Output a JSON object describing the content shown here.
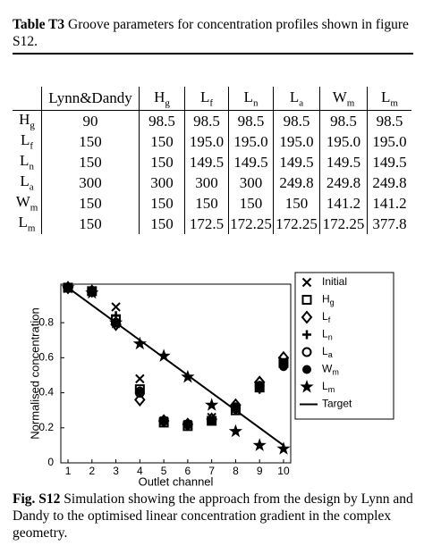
{
  "table_caption": {
    "label": "Table T3",
    "text": " Groove parameters for concentration profiles shown in figure S12."
  },
  "table": {
    "header": [
      {
        "base": "Lynn&Dandy"
      },
      {
        "base": "H",
        "sub": "g"
      },
      {
        "base": "L",
        "sub": "f"
      },
      {
        "base": "L",
        "sub": "n"
      },
      {
        "base": "L",
        "sub": "a"
      },
      {
        "base": "W",
        "sub": "m"
      },
      {
        "base": "L",
        "sub": "m"
      }
    ],
    "rows": [
      {
        "label": {
          "base": "H",
          "sub": "g"
        },
        "cells": [
          "90",
          "98.5",
          "98.5",
          "98.5",
          "98.5",
          "98.5",
          "98.5"
        ]
      },
      {
        "label": {
          "base": "L",
          "sub": "f"
        },
        "cells": [
          "150",
          "150",
          "195.0",
          "195.0",
          "195.0",
          "195.0",
          "195.0"
        ]
      },
      {
        "label": {
          "base": "L",
          "sub": "n"
        },
        "cells": [
          "150",
          "150",
          "149.5",
          "149.5",
          "149.5",
          "149.5",
          "149.5"
        ]
      },
      {
        "label": {
          "base": "L",
          "sub": "a"
        },
        "cells": [
          "300",
          "300",
          "300",
          "300",
          "249.8",
          "249.8",
          "249.8"
        ]
      },
      {
        "label": {
          "base": "W",
          "sub": "m"
        },
        "cells": [
          "150",
          "150",
          "150",
          "150",
          "150",
          "141.2",
          "141.2"
        ]
      },
      {
        "label": {
          "base": "L",
          "sub": "m"
        },
        "cells": [
          "150",
          "150",
          "172.5",
          "172.25",
          "172.25",
          "172.25",
          "377.8"
        ]
      }
    ]
  },
  "chart_data": {
    "type": "scatter",
    "x_label": "Outlet channel",
    "y_label": "Normalised concentration",
    "x": [
      1,
      2,
      3,
      4,
      5,
      6,
      7,
      8,
      9,
      10
    ],
    "xlim": [
      0.7,
      10.3
    ],
    "ylim": [
      0,
      1.02
    ],
    "xticks": [
      1,
      2,
      3,
      4,
      5,
      6,
      7,
      8,
      9,
      10
    ],
    "yticks": [
      0,
      0.2,
      0.4,
      0.6,
      0.8
    ],
    "series": [
      {
        "name": "Initial",
        "marker": "x",
        "color": "#000000",
        "values": [
          1.0,
          0.98,
          0.89,
          0.48,
          0.24,
          0.22,
          0.26,
          0.31,
          0.43,
          0.58
        ]
      },
      {
        "name": "H",
        "sub": "g",
        "marker": "square",
        "color": "#000000",
        "values": [
          1.0,
          0.98,
          0.82,
          0.42,
          0.23,
          0.21,
          0.24,
          0.3,
          0.43,
          0.57
        ]
      },
      {
        "name": "L",
        "sub": "f",
        "marker": "diamond",
        "color": "#000000",
        "values": [
          1.0,
          0.98,
          0.79,
          0.36,
          0.24,
          0.22,
          0.25,
          0.33,
          0.46,
          0.6
        ]
      },
      {
        "name": "L",
        "sub": "n",
        "marker": "plus",
        "color": "#000000",
        "values": [
          1.0,
          0.98,
          0.84,
          0.41,
          0.24,
          0.22,
          0.24,
          0.3,
          0.42,
          0.55
        ]
      },
      {
        "name": "L",
        "sub": "a",
        "marker": "circle",
        "color": "#000000",
        "values": [
          1.0,
          0.98,
          0.8,
          0.4,
          0.24,
          0.22,
          0.24,
          0.31,
          0.44,
          0.56
        ]
      },
      {
        "name": "W",
        "sub": "m",
        "marker": "dot",
        "color": "#000000",
        "values": [
          1.0,
          0.98,
          0.8,
          0.41,
          0.24,
          0.22,
          0.24,
          0.32,
          0.43,
          0.55
        ]
      },
      {
        "name": "L",
        "sub": "m",
        "marker": "star",
        "color": "#000000",
        "values": [
          1.0,
          0.97,
          0.8,
          0.68,
          0.61,
          0.49,
          0.33,
          0.18,
          0.1,
          0.08
        ]
      },
      {
        "name": "Target",
        "marker": "line",
        "color": "#000000",
        "values": [
          1.0,
          0.9,
          0.8,
          0.7,
          0.6,
          0.5,
          0.4,
          0.3,
          0.2,
          0.1
        ]
      }
    ]
  },
  "figure_caption": {
    "label": "Fig. S12",
    "text": " Simulation showing the approach from the design by Lynn and Dandy to the optimised linear concentration gradient in the complex geometry."
  }
}
